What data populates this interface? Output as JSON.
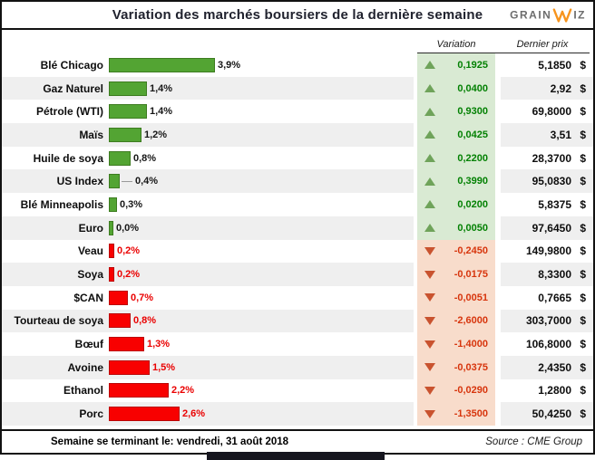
{
  "title": "Variation des marchés boursiers de la dernière semaine",
  "logo": {
    "grain": "GRAIN",
    "iz": "IZ",
    "w_icon": "orange-zigzag-w"
  },
  "columns": {
    "variation": "Variation",
    "price": "Dernier prix"
  },
  "currency": "$",
  "footer": {
    "left": "Semaine se terminant le:  vendredi, 31 août 2018",
    "source": "Source : CME Group"
  },
  "colors": {
    "positive_bar": "#53A433",
    "negative_bar": "#F80000",
    "positive_bg": "#D9EAD3",
    "negative_bg": "#F8DCCB",
    "positive_text": "#038103",
    "negative_text": "#D7350D",
    "up_triangle": "#6FA35A",
    "down_triangle": "#C9532F",
    "logo_orange": "#F7941D",
    "title_color": "#20222E"
  },
  "rows": [
    {
      "label": "Blé Chicago",
      "pct": 3.9,
      "pct_label": "3,9%",
      "dir": "up",
      "leader": false,
      "variation": "0,1925",
      "price": "5,1850"
    },
    {
      "label": "Gaz Naturel",
      "pct": 1.4,
      "pct_label": "1,4%",
      "dir": "up",
      "leader": false,
      "variation": "0,0400",
      "price": "2,92"
    },
    {
      "label": "Pétrole (WTI)",
      "pct": 1.4,
      "pct_label": "1,4%",
      "dir": "up",
      "leader": false,
      "variation": "0,9300",
      "price": "69,8000"
    },
    {
      "label": "Maïs",
      "pct": 1.2,
      "pct_label": "1,2%",
      "dir": "up",
      "leader": false,
      "variation": "0,0425",
      "price": "3,51"
    },
    {
      "label": "Huile de soya",
      "pct": 0.8,
      "pct_label": "0,8%",
      "dir": "up",
      "leader": false,
      "variation": "0,2200",
      "price": "28,3700"
    },
    {
      "label": "US Index",
      "pct": 0.4,
      "pct_label": "0,4%",
      "dir": "up",
      "leader": true,
      "variation": "0,3990",
      "price": "95,0830"
    },
    {
      "label": "Blé Minneapolis",
      "pct": 0.3,
      "pct_label": "0,3%",
      "dir": "up",
      "leader": false,
      "variation": "0,0200",
      "price": "5,8375"
    },
    {
      "label": "Euro",
      "pct": 0.0,
      "pct_label": "0,0%",
      "dir": "up",
      "leader": false,
      "variation": "0,0050",
      "price": "97,6450"
    },
    {
      "label": "Veau",
      "pct": 0.2,
      "pct_label": "0,2%",
      "dir": "down",
      "leader": false,
      "variation": "-0,2450",
      "price": "149,9800"
    },
    {
      "label": "Soya",
      "pct": 0.2,
      "pct_label": "0,2%",
      "dir": "down",
      "leader": false,
      "variation": "-0,0175",
      "price": "8,3300"
    },
    {
      "label": "$CAN",
      "pct": 0.7,
      "pct_label": "0,7%",
      "dir": "down",
      "leader": false,
      "variation": "-0,0051",
      "price": "0,7665"
    },
    {
      "label": "Tourteau de soya",
      "pct": 0.8,
      "pct_label": "0,8%",
      "dir": "down",
      "leader": false,
      "variation": "-2,6000",
      "price": "303,7000"
    },
    {
      "label": "Bœuf",
      "pct": 1.3,
      "pct_label": "1,3%",
      "dir": "down",
      "leader": false,
      "variation": "-1,4000",
      "price": "106,8000"
    },
    {
      "label": "Avoine",
      "pct": 1.5,
      "pct_label": "1,5%",
      "dir": "down",
      "leader": false,
      "variation": "-0,0375",
      "price": "2,4350"
    },
    {
      "label": "Ethanol",
      "pct": 2.2,
      "pct_label": "2,2%",
      "dir": "down",
      "leader": false,
      "variation": "-0,0290",
      "price": "1,2800"
    },
    {
      "label": "Porc",
      "pct": 2.6,
      "pct_label": "2,6%",
      "dir": "down",
      "leader": false,
      "variation": "-1,3500",
      "price": "50,4250"
    }
  ],
  "chart_data": {
    "type": "bar",
    "orientation": "horizontal",
    "title": "Variation des marchés boursiers de la dernière semaine",
    "categories": [
      "Blé Chicago",
      "Gaz Naturel",
      "Pétrole (WTI)",
      "Maïs",
      "Huile de soya",
      "US Index",
      "Blé Minneapolis",
      "Euro",
      "Veau",
      "Soya",
      "$CAN",
      "Tourteau de soya",
      "Bœuf",
      "Avoine",
      "Ethanol",
      "Porc"
    ],
    "series": [
      {
        "name": "Variation hebdomadaire (%)",
        "values": [
          3.9,
          1.4,
          1.4,
          1.2,
          0.8,
          0.4,
          0.3,
          0.0,
          -0.2,
          -0.2,
          -0.7,
          -0.8,
          -1.3,
          -1.5,
          -2.2,
          -2.6
        ]
      },
      {
        "name": "Variation",
        "values": [
          0.1925,
          0.04,
          0.93,
          0.0425,
          0.22,
          0.399,
          0.02,
          0.005,
          -0.245,
          -0.0175,
          -0.0051,
          -2.6,
          -1.4,
          -0.0375,
          -0.029,
          -1.35
        ]
      },
      {
        "name": "Dernier prix ($)",
        "values": [
          5.185,
          2.92,
          69.8,
          3.51,
          28.37,
          95.083,
          5.8375,
          97.645,
          149.98,
          8.33,
          0.7665,
          303.7,
          106.8,
          2.435,
          1.28,
          50.425
        ]
      }
    ],
    "xlim": [
      0,
      4
    ],
    "grid": false,
    "legend": false,
    "notes": "Bars extend right from a common baseline; positive weeks green, negative weeks red."
  }
}
